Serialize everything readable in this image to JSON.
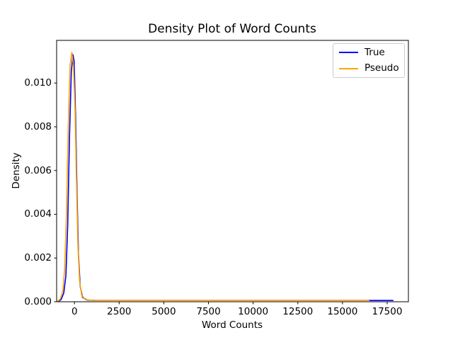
{
  "figure": {
    "title": "Density Plot of Word Counts",
    "xlabel": "Word Counts",
    "ylabel": "Density"
  },
  "legend": {
    "position": "upper right",
    "entries": [
      {
        "label": "True",
        "color": "#0000ff"
      },
      {
        "label": "Pseudo",
        "color": "#ffa500"
      }
    ]
  },
  "chart_data": {
    "type": "line",
    "title": "Density Plot of Word Counts",
    "xlabel": "Word Counts",
    "ylabel": "Density",
    "xlim": [
      -1000,
      18690
    ],
    "ylim": [
      0,
      0.01195
    ],
    "grid": false,
    "legend_position": "upper right",
    "x_ticks": {
      "values": [
        0,
        2500,
        5000,
        7500,
        10000,
        12500,
        15000,
        17500
      ],
      "labels": [
        "0",
        "2500",
        "5000",
        "7500",
        "10000",
        "12500",
        "15000",
        "17500"
      ]
    },
    "y_ticks": {
      "values": [
        0.0,
        0.002,
        0.004,
        0.006,
        0.008,
        0.01
      ],
      "labels": [
        "0.000",
        "0.002",
        "0.004",
        "0.006",
        "0.008",
        "0.010"
      ]
    },
    "series": [
      {
        "name": "True",
        "color": "#0000ff",
        "peak_density": 0.0113,
        "x": [
          -900,
          -750,
          -600,
          -480,
          -380,
          -280,
          -180,
          -90,
          -20,
          60,
          140,
          220,
          320,
          450,
          700,
          1200,
          2500,
          9000,
          17850
        ],
        "y": [
          2e-05,
          0.0001,
          0.0004,
          0.0012,
          0.0035,
          0.0075,
          0.0105,
          0.0113,
          0.011,
          0.0085,
          0.005,
          0.0022,
          0.0007,
          0.0002,
          8e-05,
          6e-05,
          6e-05,
          6e-05,
          6e-05
        ]
      },
      {
        "name": "Pseudo",
        "color": "#ffa500",
        "peak_density": 0.0114,
        "x": [
          -950,
          -800,
          -650,
          -550,
          -450,
          -350,
          -250,
          -150,
          -60,
          30,
          110,
          190,
          280,
          400,
          600,
          1100,
          2500,
          9000,
          16500
        ],
        "y": [
          2e-05,
          0.00012,
          0.0005,
          0.0015,
          0.004,
          0.008,
          0.0108,
          0.0114,
          0.0108,
          0.0088,
          0.0055,
          0.0026,
          0.001,
          0.0003,
          0.0001,
          6e-05,
          6e-05,
          6e-05,
          6e-05
        ]
      }
    ]
  }
}
